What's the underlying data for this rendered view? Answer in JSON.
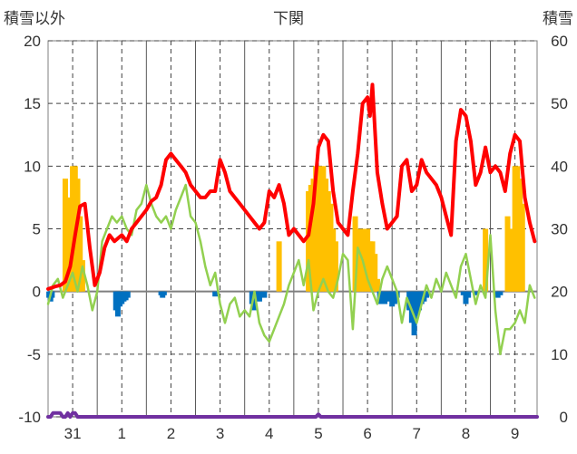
{
  "chart_data": {
    "type": "line",
    "title": "下関",
    "left_axis_label": "積雪以外",
    "right_axis_label": "積雪",
    "left_ylim": [
      -10,
      20
    ],
    "right_ylim": [
      0,
      60
    ],
    "left_ticks": [
      "20",
      "15",
      "10",
      "5",
      "0",
      "-5",
      "-10"
    ],
    "right_ticks": [
      "60",
      "50",
      "40",
      "30",
      "20",
      "10",
      "0"
    ],
    "x_ticks": [
      "31",
      "1",
      "2",
      "3",
      "4",
      "5",
      "6",
      "7",
      "8",
      "9"
    ],
    "x_range": [
      -0.5,
      9.45
    ],
    "grid": true,
    "legend": "none",
    "colors": {
      "red_series": "#ff0000",
      "green_series": "#92d050",
      "orange_bars": "#ffc000",
      "blue_bars": "#0070c0",
      "purple_series": "#7030a0",
      "zero_line": "#7f7f7f",
      "grid": "#404040"
    },
    "series": [
      {
        "color": "red",
        "axis": "left",
        "type": "line",
        "x": [
          -0.5,
          -0.35,
          -0.25,
          -0.15,
          -0.05,
          0.05,
          0.15,
          0.25,
          0.35,
          0.45,
          0.55,
          0.65,
          0.75,
          0.85,
          1.0,
          1.1,
          1.2,
          1.3,
          1.4,
          1.5,
          1.6,
          1.7,
          1.8,
          1.9,
          2.0,
          2.1,
          2.2,
          2.3,
          2.4,
          2.5,
          2.6,
          2.7,
          2.8,
          2.9,
          3.0,
          3.1,
          3.2,
          3.3,
          3.4,
          3.5,
          3.6,
          3.7,
          3.8,
          3.9,
          4.0,
          4.1,
          4.2,
          4.3,
          4.4,
          4.5,
          4.6,
          4.7,
          4.8,
          4.9,
          5.0,
          5.1,
          5.2,
          5.3,
          5.4,
          5.5,
          5.6,
          5.7,
          5.8,
          5.9,
          6.0,
          6.05,
          6.1,
          6.2,
          6.3,
          6.4,
          6.5,
          6.6,
          6.7,
          6.8,
          6.9,
          7.0,
          7.1,
          7.2,
          7.3,
          7.4,
          7.5,
          7.6,
          7.7,
          7.8,
          7.9,
          8.0,
          8.1,
          8.2,
          8.3,
          8.4,
          8.5,
          8.6,
          8.7,
          8.8,
          8.9,
          9.0,
          9.1,
          9.2,
          9.3,
          9.4
        ],
        "y": [
          0.2,
          0.4,
          0.5,
          0.8,
          2.0,
          4.5,
          6.8,
          7.0,
          3.5,
          0.5,
          1.5,
          3.5,
          4.5,
          4.0,
          4.5,
          4.0,
          5.0,
          5.5,
          6.0,
          6.5,
          7.2,
          7.5,
          8.5,
          10.5,
          11.0,
          10.5,
          10.0,
          9.5,
          8.5,
          8.0,
          7.5,
          7.5,
          8.0,
          8.0,
          10.5,
          9.5,
          8.0,
          7.5,
          7.0,
          6.5,
          6.0,
          5.5,
          5.0,
          5.5,
          8.0,
          7.5,
          8.5,
          7.0,
          4.5,
          5.0,
          4.5,
          4.0,
          4.5,
          7.0,
          11.5,
          12.5,
          12.0,
          8.0,
          5.5,
          5.0,
          4.5,
          8.0,
          11.0,
          15.0,
          15.5,
          14.0,
          16.5,
          9.5,
          7.0,
          5.0,
          5.5,
          6.0,
          10.0,
          10.5,
          8.0,
          8.5,
          10.5,
          9.5,
          9.0,
          8.5,
          7.5,
          6.0,
          4.5,
          12.0,
          14.5,
          14.0,
          12.0,
          8.5,
          9.5,
          11.5,
          9.5,
          10.0,
          9.5,
          8.0,
          11.0,
          12.5,
          12.0,
          7.5,
          5.5,
          4.0
        ]
      },
      {
        "color": "green",
        "axis": "left",
        "type": "line",
        "x": [
          -0.5,
          -0.4,
          -0.3,
          -0.2,
          -0.1,
          0.0,
          0.1,
          0.2,
          0.3,
          0.4,
          0.5,
          0.6,
          0.7,
          0.8,
          0.9,
          1.0,
          1.1,
          1.2,
          1.3,
          1.4,
          1.5,
          1.6,
          1.7,
          1.8,
          1.9,
          2.0,
          2.1,
          2.2,
          2.3,
          2.4,
          2.5,
          2.6,
          2.7,
          2.8,
          2.9,
          3.0,
          3.1,
          3.2,
          3.3,
          3.4,
          3.5,
          3.6,
          3.7,
          3.8,
          3.9,
          4.0,
          4.1,
          4.2,
          4.3,
          4.4,
          4.5,
          4.6,
          4.7,
          4.8,
          4.9,
          5.0,
          5.1,
          5.2,
          5.3,
          5.4,
          5.5,
          5.6,
          5.7,
          5.8,
          5.9,
          6.0,
          6.1,
          6.2,
          6.3,
          6.4,
          6.5,
          6.6,
          6.7,
          6.8,
          6.9,
          7.0,
          7.1,
          7.2,
          7.3,
          7.4,
          7.5,
          7.6,
          7.7,
          7.8,
          7.9,
          8.0,
          8.1,
          8.2,
          8.3,
          8.4,
          8.5,
          8.6,
          8.7,
          8.8,
          8.9,
          9.0,
          9.1,
          9.2,
          9.3,
          9.4
        ],
        "y": [
          -1.0,
          0.5,
          1.0,
          -0.5,
          0.5,
          1.5,
          0.0,
          2.0,
          0.5,
          -1.5,
          0.0,
          4.0,
          5.0,
          6.0,
          5.5,
          6.0,
          5.0,
          4.5,
          6.5,
          7.0,
          8.5,
          7.0,
          6.0,
          5.5,
          6.0,
          5.0,
          6.5,
          7.5,
          8.5,
          6.0,
          5.5,
          4.0,
          2.0,
          0.5,
          1.5,
          -1.0,
          -2.5,
          -1.0,
          -0.5,
          -2.0,
          -1.5,
          -2.0,
          0.0,
          -2.5,
          -3.5,
          -4.0,
          -3.0,
          -2.0,
          -1.0,
          0.5,
          1.5,
          2.5,
          0.5,
          2.5,
          -1.5,
          0.0,
          1.0,
          0.0,
          -0.5,
          1.0,
          3.0,
          2.5,
          -3.0,
          3.5,
          2.5,
          1.0,
          0.0,
          -1.0,
          1.0,
          2.0,
          1.0,
          0.0,
          -2.5,
          -0.5,
          -1.5,
          -2.5,
          -1.0,
          0.5,
          -0.5,
          1.0,
          0.0,
          1.5,
          0.5,
          -0.5,
          2.0,
          3.0,
          1.0,
          -1.0,
          0.5,
          -0.5,
          4.5,
          -1.5,
          -5.0,
          -3.0,
          -3.0,
          -2.5,
          -1.5,
          -2.5,
          0.5,
          -0.5
        ]
      },
      {
        "color": "orange",
        "axis": "right",
        "type": "bar",
        "x": [
          -0.15,
          -0.1,
          -0.05,
          0.0,
          0.05,
          0.1,
          0.15,
          0.2,
          4.2,
          4.8,
          4.85,
          4.9,
          4.95,
          5.0,
          5.05,
          5.1,
          5.15,
          5.2,
          5.25,
          5.3,
          5.35,
          5.75,
          5.8,
          5.85,
          5.9,
          5.95,
          6.0,
          6.05,
          6.1,
          6.15,
          6.2,
          8.4,
          8.85,
          8.9,
          8.95,
          9.0,
          9.05,
          9.1,
          9.15
        ],
        "y": [
          38,
          35,
          32,
          40,
          40,
          38,
          32,
          25,
          28,
          36,
          37,
          38,
          40,
          40,
          40,
          40,
          38,
          36,
          34,
          30,
          28,
          32,
          30,
          28,
          30,
          29,
          30,
          28,
          28,
          26,
          22,
          30,
          32,
          28,
          30,
          40,
          40,
          38,
          34
        ]
      },
      {
        "color": "blue",
        "axis": "left",
        "type": "bar",
        "x": [
          -0.48,
          -0.45,
          -0.42,
          0.88,
          0.92,
          0.96,
          1.0,
          1.04,
          1.08,
          1.12,
          1.8,
          1.83,
          1.86,
          2.9,
          3.65,
          3.7,
          3.75,
          3.8,
          3.9,
          6.25,
          6.3,
          6.35,
          6.4,
          6.45,
          6.5,
          6.55,
          6.6,
          6.85,
          6.9,
          6.95,
          7.0,
          7.05,
          7.1,
          7.15,
          7.2,
          7.95,
          8.0,
          8.05,
          8.2,
          8.65,
          8.7
        ],
        "y": [
          -0.5,
          -0.8,
          -0.5,
          -1.5,
          -2.0,
          -1.2,
          -1.0,
          -0.8,
          -0.7,
          -0.5,
          -0.3,
          -0.5,
          -0.3,
          -0.4,
          -1.0,
          -1.5,
          -0.5,
          -0.8,
          -0.5,
          -1.0,
          -0.8,
          -1.0,
          -0.5,
          -0.8,
          -1.2,
          -1.0,
          -0.5,
          -1.5,
          -2.5,
          -3.5,
          -2.0,
          -1.5,
          -1.0,
          -0.8,
          -0.5,
          -0.3,
          -1.0,
          -0.5,
          -0.3,
          -0.5,
          -0.3
        ]
      },
      {
        "color": "purple",
        "axis": "left",
        "type": "line",
        "x": [
          -0.5,
          -0.45,
          -0.4,
          -0.35,
          -0.3,
          -0.25,
          -0.2,
          -0.15,
          -0.1,
          -0.05,
          0.0,
          0.05,
          0.1,
          0.15,
          0.2,
          4.9,
          4.95,
          5.0,
          5.05,
          5.1,
          9.45
        ],
        "y": [
          -10,
          -10,
          -9.7,
          -9.7,
          -9.7,
          -9.7,
          -10,
          -10,
          -9.7,
          -10,
          -9.7,
          -9.7,
          -10,
          -10,
          -10,
          -10,
          -10,
          -9.8,
          -10,
          -10,
          -10
        ]
      }
    ]
  }
}
